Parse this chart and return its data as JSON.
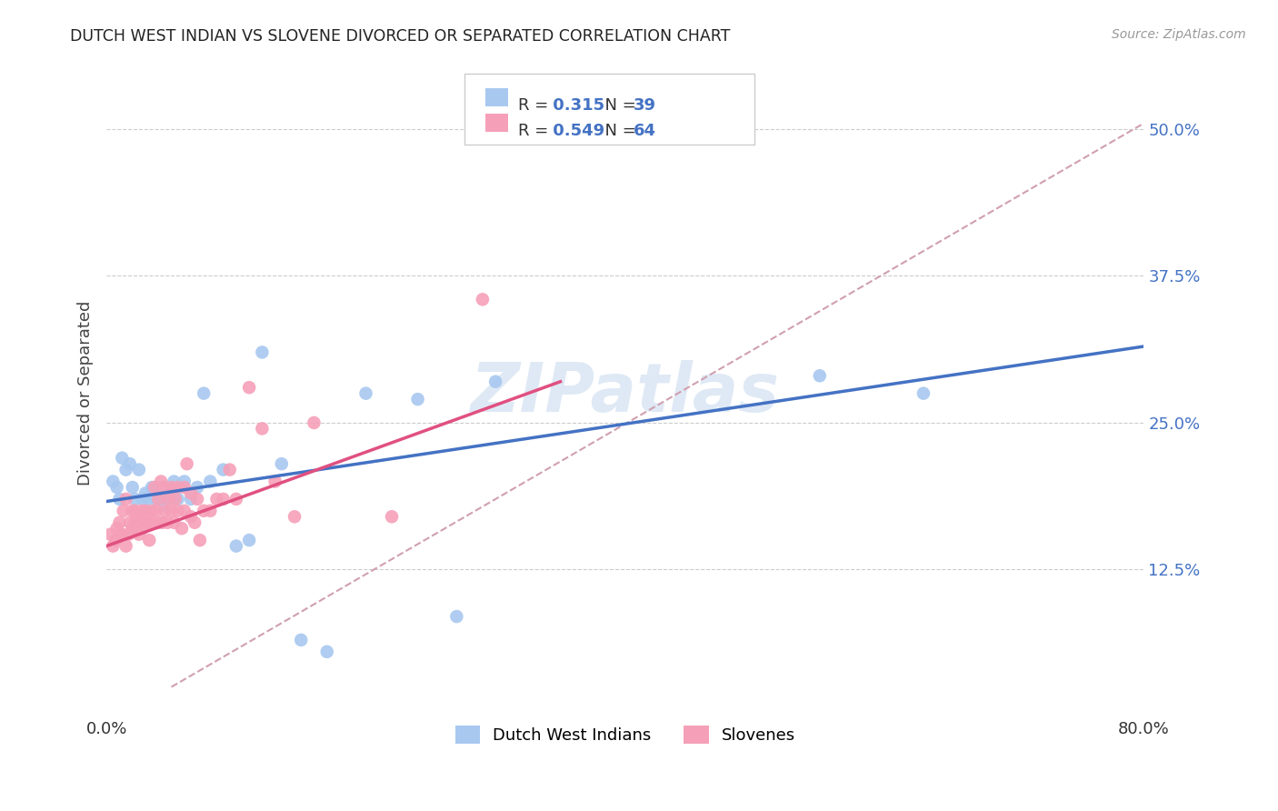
{
  "title": "DUTCH WEST INDIAN VS SLOVENE DIVORCED OR SEPARATED CORRELATION CHART",
  "source": "Source: ZipAtlas.com",
  "ylabel": "Divorced or Separated",
  "yticks": [
    "12.5%",
    "25.0%",
    "37.5%",
    "50.0%"
  ],
  "ytick_vals": [
    0.125,
    0.25,
    0.375,
    0.5
  ],
  "xlim": [
    0.0,
    0.8
  ],
  "ylim": [
    0.0,
    0.55
  ],
  "watermark": "ZIPatlas",
  "blue_R": "0.315",
  "blue_N": "39",
  "pink_R": "0.549",
  "pink_N": "64",
  "blue_color": "#A8C8F0",
  "pink_color": "#F5A0B8",
  "blue_line_color": "#4472C4",
  "pink_line_color": "#E05080",
  "diagonal_color": "#D0A0B0",
  "blue_scatter_x": [
    0.005,
    0.008,
    0.01,
    0.012,
    0.015,
    0.018,
    0.02,
    0.022,
    0.025,
    0.028,
    0.03,
    0.032,
    0.035,
    0.038,
    0.04,
    0.042,
    0.045,
    0.048,
    0.05,
    0.052,
    0.055,
    0.06,
    0.065,
    0.07,
    0.075,
    0.08,
    0.09,
    0.1,
    0.11,
    0.12,
    0.135,
    0.15,
    0.17,
    0.2,
    0.24,
    0.27,
    0.3,
    0.55,
    0.63
  ],
  "blue_scatter_y": [
    0.2,
    0.195,
    0.185,
    0.22,
    0.21,
    0.215,
    0.195,
    0.185,
    0.21,
    0.185,
    0.19,
    0.185,
    0.195,
    0.185,
    0.185,
    0.195,
    0.18,
    0.185,
    0.19,
    0.2,
    0.185,
    0.2,
    0.185,
    0.195,
    0.275,
    0.2,
    0.21,
    0.145,
    0.15,
    0.31,
    0.215,
    0.065,
    0.055,
    0.275,
    0.27,
    0.085,
    0.285,
    0.29,
    0.275
  ],
  "pink_scatter_x": [
    0.003,
    0.005,
    0.007,
    0.008,
    0.01,
    0.01,
    0.012,
    0.013,
    0.015,
    0.015,
    0.017,
    0.018,
    0.02,
    0.02,
    0.022,
    0.022,
    0.025,
    0.025,
    0.027,
    0.028,
    0.03,
    0.03,
    0.032,
    0.033,
    0.035,
    0.035,
    0.037,
    0.038,
    0.04,
    0.04,
    0.042,
    0.043,
    0.045,
    0.045,
    0.047,
    0.048,
    0.05,
    0.05,
    0.052,
    0.053,
    0.055,
    0.055,
    0.058,
    0.06,
    0.06,
    0.062,
    0.065,
    0.065,
    0.068,
    0.07,
    0.072,
    0.075,
    0.08,
    0.085,
    0.09,
    0.095,
    0.1,
    0.11,
    0.12,
    0.13,
    0.145,
    0.16,
    0.22,
    0.29
  ],
  "pink_scatter_y": [
    0.155,
    0.145,
    0.15,
    0.16,
    0.155,
    0.165,
    0.155,
    0.175,
    0.145,
    0.185,
    0.155,
    0.165,
    0.175,
    0.16,
    0.165,
    0.175,
    0.155,
    0.17,
    0.175,
    0.16,
    0.165,
    0.175,
    0.165,
    0.15,
    0.165,
    0.175,
    0.195,
    0.175,
    0.165,
    0.185,
    0.2,
    0.165,
    0.175,
    0.195,
    0.165,
    0.185,
    0.175,
    0.195,
    0.165,
    0.185,
    0.175,
    0.195,
    0.16,
    0.175,
    0.195,
    0.215,
    0.17,
    0.19,
    0.165,
    0.185,
    0.15,
    0.175,
    0.175,
    0.185,
    0.185,
    0.21,
    0.185,
    0.28,
    0.245,
    0.2,
    0.17,
    0.25,
    0.17,
    0.355
  ],
  "blue_line_x": [
    0.0,
    0.8
  ],
  "blue_line_y": [
    0.183,
    0.315
  ],
  "pink_line_x": [
    0.0,
    0.35
  ],
  "pink_line_y": [
    0.145,
    0.285
  ],
  "diag_line_x": [
    0.05,
    0.8
  ],
  "diag_line_y": [
    0.025,
    0.505
  ]
}
